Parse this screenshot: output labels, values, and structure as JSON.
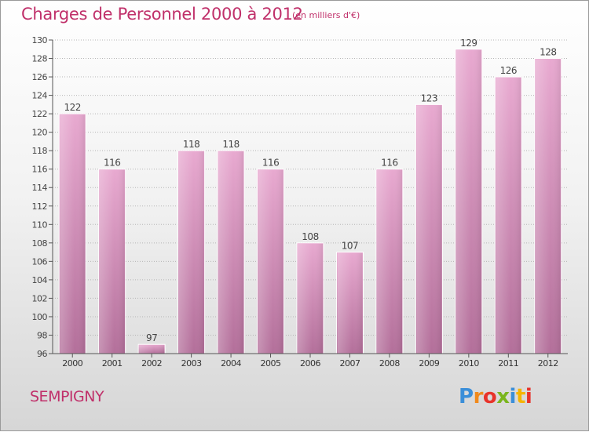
{
  "title": "Charges de Personnel 2000 à 2012",
  "subtitle": "(en milliers d'€)",
  "city": "SEMPIGNY",
  "logo": {
    "letters": [
      "P",
      "r",
      "o",
      "x",
      "i",
      "t",
      "i"
    ],
    "colors": [
      "#3b8fd9",
      "#f08a1c",
      "#e8332a",
      "#7ab51d",
      "#3b8fd9",
      "#f5b400",
      "#e8332a"
    ]
  },
  "colors": {
    "bar": "#d07fb0",
    "title": "#c0306a"
  },
  "chart_data": {
    "type": "bar",
    "categories": [
      "2000",
      "2001",
      "2002",
      "2003",
      "2004",
      "2005",
      "2006",
      "2007",
      "2008",
      "2009",
      "2010",
      "2011",
      "2012"
    ],
    "values": [
      122,
      116,
      97,
      118,
      118,
      116,
      108,
      107,
      116,
      123,
      129,
      126,
      128
    ],
    "ylim": [
      96,
      130
    ],
    "yticks": [
      96,
      98,
      100,
      102,
      104,
      106,
      108,
      110,
      112,
      114,
      116,
      118,
      120,
      122,
      124,
      126,
      128,
      130
    ],
    "grid": true
  }
}
